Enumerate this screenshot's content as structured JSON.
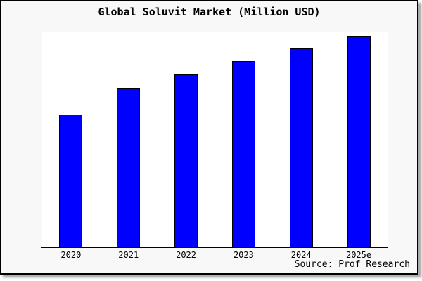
{
  "window": {
    "background_color": "#f8f8f8",
    "page_color": "#ffffff",
    "border_color": "#000000"
  },
  "chart_data": {
    "type": "bar",
    "title": "Global Soluvit Market (Million USD)",
    "categories": [
      "2020",
      "2021",
      "2022",
      "2023",
      "2024",
      "2025e"
    ],
    "values": [
      62.7,
      75.3,
      81.7,
      88.0,
      94.0,
      100.0
    ],
    "values_note": "No y-axis scale, gridlines or data labels shown in chart; values are relative bar heights as percent of tallest bar (2025e = 100)",
    "bar_color": "#0000ff",
    "bar_border_color": "#000000",
    "plot_background": "#ffffff",
    "axis_color": "#000000",
    "xlabel": "",
    "ylabel": "",
    "gridlines": false,
    "legend": false
  },
  "footer": {
    "source_label": "Source: Prof Research"
  }
}
